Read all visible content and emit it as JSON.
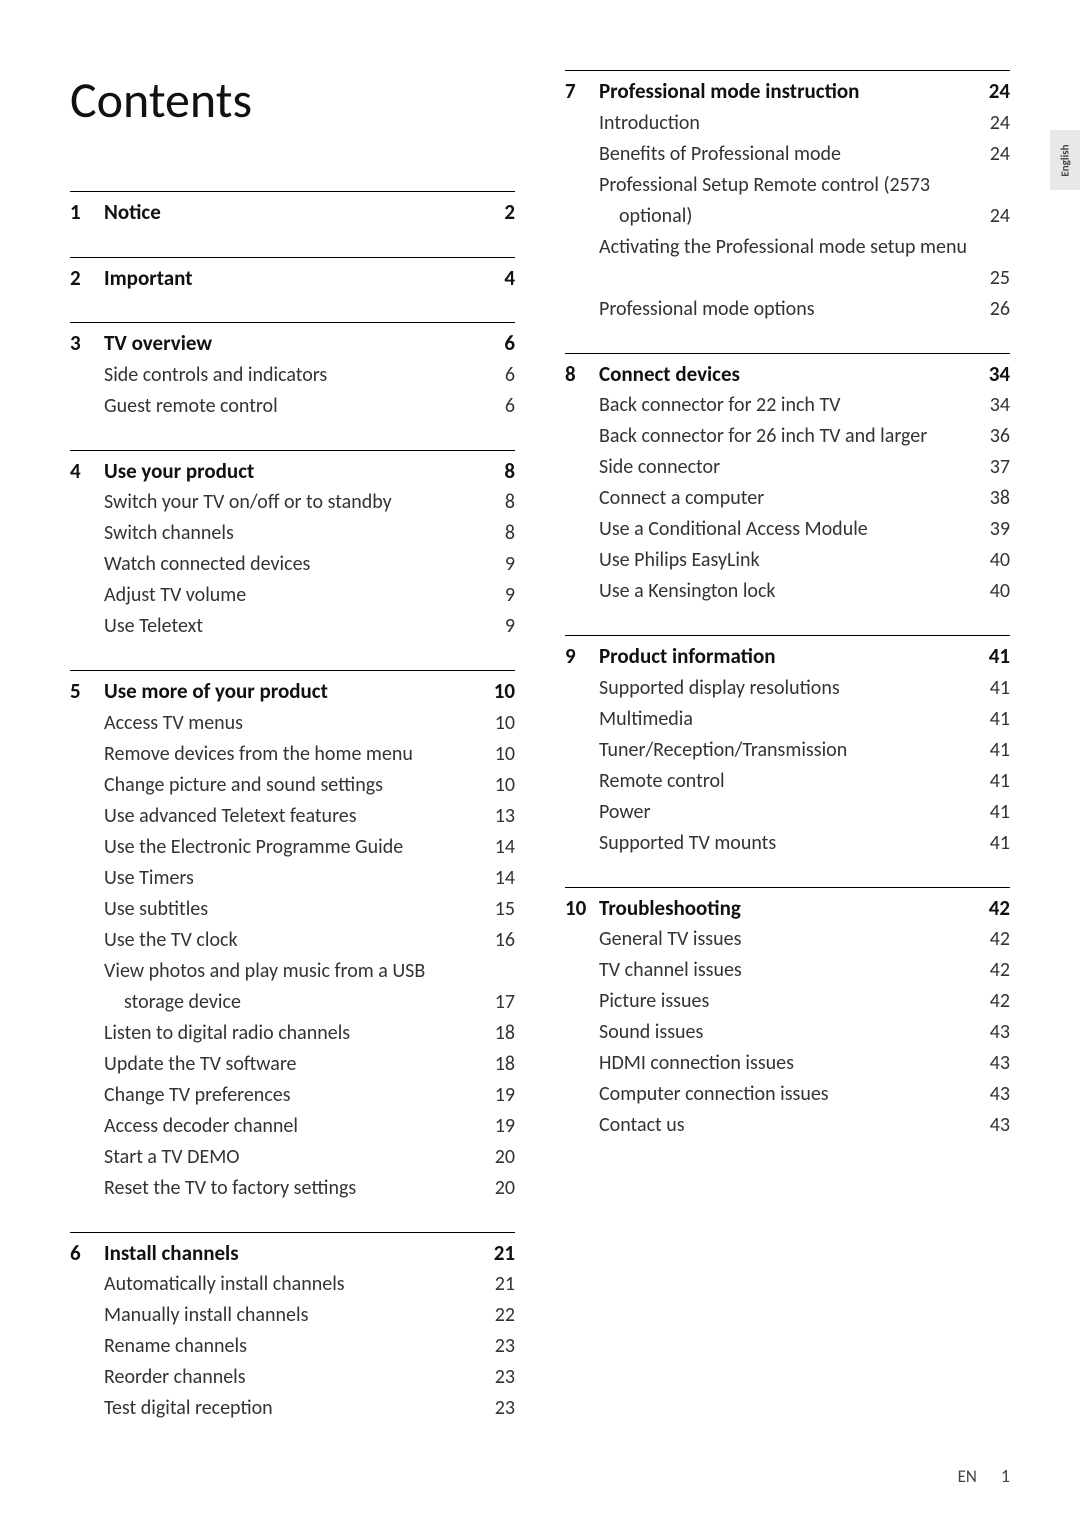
{
  "title": "Contents",
  "language_tab": "English",
  "footer": {
    "label": "EN",
    "page": "1"
  },
  "left_sections": [
    {
      "num": "1",
      "title": "Notice",
      "page": "2",
      "items": []
    },
    {
      "num": "2",
      "title": "Important",
      "page": "4",
      "items": []
    },
    {
      "num": "3",
      "title": "TV overview",
      "page": "6",
      "items": [
        {
          "label": "Side controls and indicators",
          "page": "6"
        },
        {
          "label": "Guest remote control",
          "page": "6"
        }
      ]
    },
    {
      "num": "4",
      "title": "Use your product",
      "page": "8",
      "items": [
        {
          "label": "Switch your TV on/off or to standby",
          "page": "8"
        },
        {
          "label": "Switch channels",
          "page": "8"
        },
        {
          "label": "Watch connected devices",
          "page": "9"
        },
        {
          "label": "Adjust TV volume",
          "page": "9"
        },
        {
          "label": "Use Teletext",
          "page": "9"
        }
      ]
    },
    {
      "num": "5",
      "title": "Use more of your product",
      "page": "10",
      "items": [
        {
          "label": "Access TV menus",
          "page": "10"
        },
        {
          "label": "Remove devices from the home menu",
          "page": "10"
        },
        {
          "label": "Change picture and sound settings",
          "page": "10"
        },
        {
          "label": "Use advanced Teletext features",
          "page": "13"
        },
        {
          "label": "Use the Electronic Programme Guide",
          "page": "14"
        },
        {
          "label": "Use Timers",
          "page": "14"
        },
        {
          "label": "Use subtitles",
          "page": "15"
        },
        {
          "label": "Use the TV clock",
          "page": "16"
        },
        {
          "label": "View photos and play music from a USB",
          "page": "",
          "wrap": true
        },
        {
          "label": "storage device",
          "page": "17",
          "cont": true
        },
        {
          "label": "Listen to digital radio channels",
          "page": "18"
        },
        {
          "label": "Update the TV software",
          "page": "18"
        },
        {
          "label": "Change TV preferences",
          "page": "19"
        },
        {
          "label": "Access decoder channel",
          "page": "19"
        },
        {
          "label": "Start a TV DEMO",
          "page": "20"
        },
        {
          "label": "Reset the TV to factory settings",
          "page": "20"
        }
      ]
    },
    {
      "num": "6",
      "title": "Install channels",
      "page": "21",
      "items": [
        {
          "label": "Automatically install channels",
          "page": "21"
        },
        {
          "label": "Manually install channels",
          "page": "22"
        },
        {
          "label": "Rename channels",
          "page": "23"
        },
        {
          "label": "Reorder channels",
          "page": "23"
        },
        {
          "label": "Test digital reception",
          "page": "23"
        }
      ]
    }
  ],
  "right_sections": [
    {
      "num": "7",
      "title": "Professional mode instruction",
      "page": "24",
      "items": [
        {
          "label": "Introduction",
          "page": "24"
        },
        {
          "label": "Benefits of Professional mode",
          "page": "24"
        },
        {
          "label": "Professional Setup Remote control (2573",
          "page": "",
          "wrap": true
        },
        {
          "label": "optional)",
          "page": "24",
          "cont": true
        },
        {
          "label": "Activating the Professional mode setup menu",
          "page": "",
          "wrap": true
        },
        {
          "label": "",
          "page": "25",
          "cont": true
        },
        {
          "label": "Professional mode options",
          "page": "26"
        }
      ]
    },
    {
      "num": "8",
      "title": "Connect devices",
      "page": "34",
      "items": [
        {
          "label": "Back connector for 22 inch TV",
          "page": "34"
        },
        {
          "label": "Back connector for 26 inch TV and larger",
          "page": "36"
        },
        {
          "label": "Side connector",
          "page": "37"
        },
        {
          "label": "Connect a computer",
          "page": "38"
        },
        {
          "label": "Use a Conditional Access Module",
          "page": "39"
        },
        {
          "label": "Use Philips EasyLink",
          "page": "40"
        },
        {
          "label": "Use a Kensington lock",
          "page": "40"
        }
      ]
    },
    {
      "num": "9",
      "title": "Product information",
      "page": "41",
      "items": [
        {
          "label": "Supported display resolutions",
          "page": "41"
        },
        {
          "label": "Multimedia",
          "page": "41"
        },
        {
          "label": "Tuner/Reception/Transmission",
          "page": "41"
        },
        {
          "label": "Remote control",
          "page": "41"
        },
        {
          "label": "Power",
          "page": "41"
        },
        {
          "label": "Supported TV mounts",
          "page": "41"
        }
      ]
    },
    {
      "num": "10",
      "title": "Troubleshooting",
      "page": "42",
      "items": [
        {
          "label": "General TV issues",
          "page": "42"
        },
        {
          "label": "TV channel issues",
          "page": "42"
        },
        {
          "label": "Picture issues",
          "page": "42"
        },
        {
          "label": "Sound issues",
          "page": "43"
        },
        {
          "label": "HDMI connection issues",
          "page": "43"
        },
        {
          "label": "Computer connection issues",
          "page": "43"
        },
        {
          "label": "Contact us",
          "page": "43"
        }
      ]
    }
  ]
}
